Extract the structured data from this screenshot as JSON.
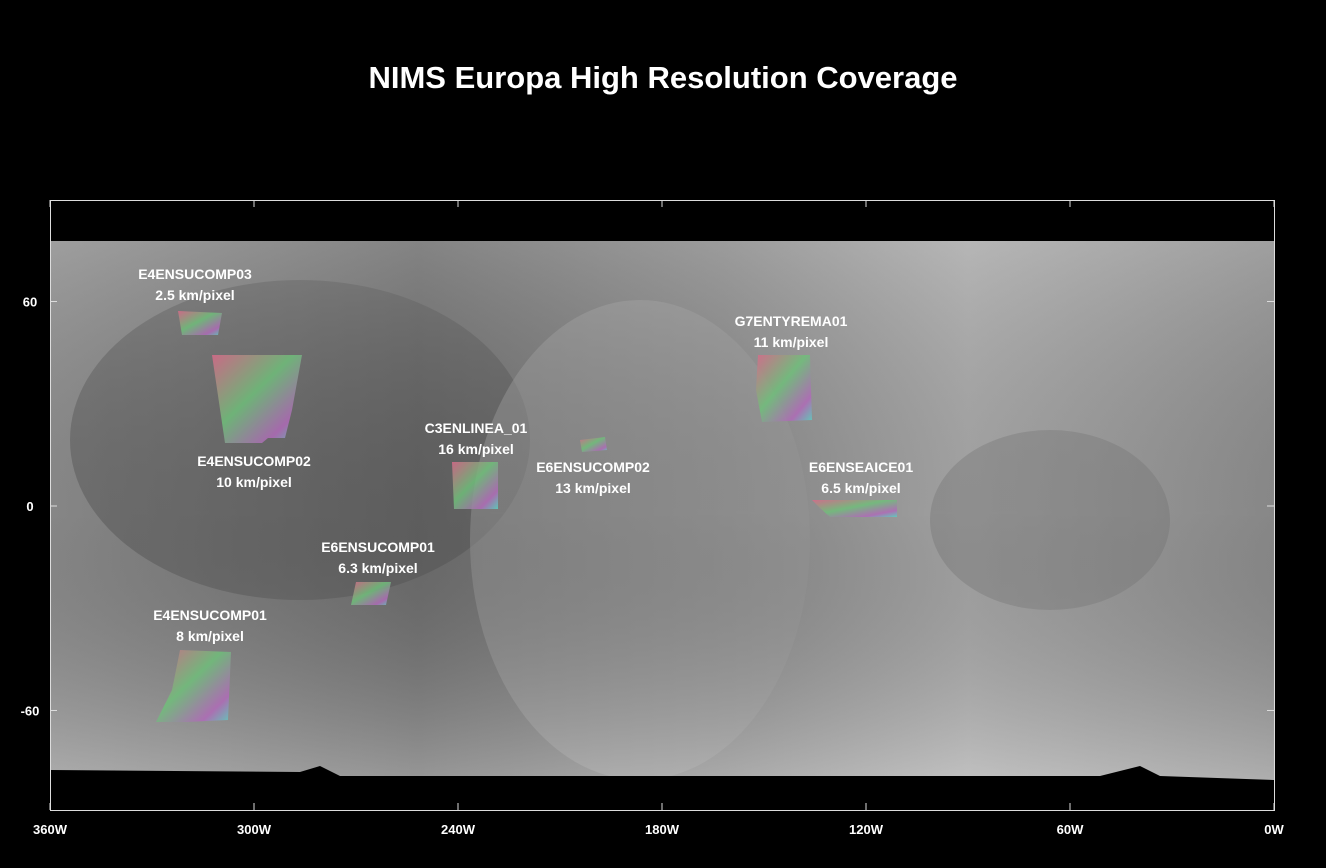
{
  "title": "NIMS Europa High Resolution Coverage",
  "axes": {
    "x_ticks": [
      {
        "value": 360,
        "label": "360W"
      },
      {
        "value": 300,
        "label": "300W"
      },
      {
        "value": 240,
        "label": "240W"
      },
      {
        "value": 180,
        "label": "180W"
      },
      {
        "value": 120,
        "label": "120W"
      },
      {
        "value": 60,
        "label": "60W"
      },
      {
        "value": 0,
        "label": "0W"
      }
    ],
    "y_ticks": [
      60,
      0,
      -60
    ]
  },
  "regions": [
    {
      "name": "E4ENSUCOMP03",
      "resolution": "2.5 km/pixel"
    },
    {
      "name": "E4ENSUCOMP02",
      "resolution": "10 km/pixel"
    },
    {
      "name": "C3ENLINEA_01",
      "resolution": "16 km/pixel"
    },
    {
      "name": "E6ENSUCOMP02",
      "resolution": "13 km/pixel"
    },
    {
      "name": "G7ENTYREMA01",
      "resolution": "11 km/pixel"
    },
    {
      "name": "E6ENSEAICE01",
      "resolution": "6.5 km/pixel"
    },
    {
      "name": "E6ENSUCOMP01",
      "resolution": "6.3 km/pixel"
    },
    {
      "name": "E4ENSUCOMP01",
      "resolution": "8 km/pixel"
    }
  ]
}
